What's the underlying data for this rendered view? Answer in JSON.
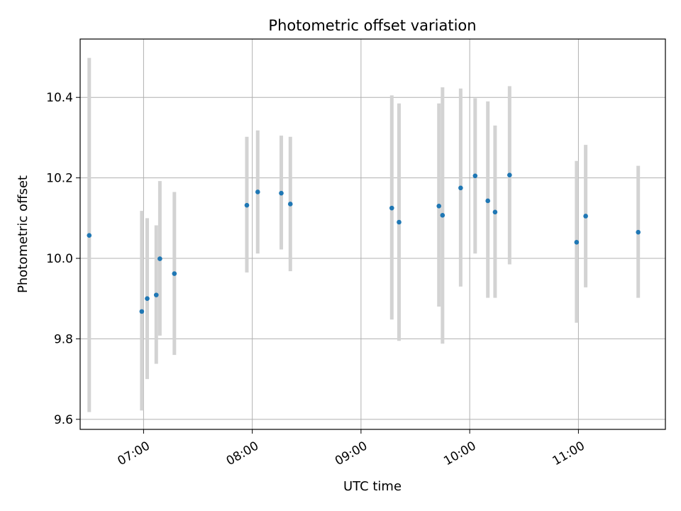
{
  "chart_data": {
    "type": "scatter",
    "title": "Photometric offset variation",
    "xlabel": "UTC time",
    "ylabel": "Photometric offset",
    "x_tick_labels": [
      "07:00",
      "08:00",
      "09:00",
      "10:00",
      "11:00"
    ],
    "y_tick_labels": [
      "9.6",
      "9.8",
      "10.0",
      "10.2",
      "10.4"
    ],
    "xlim": [
      "06:25",
      "11:48"
    ],
    "ylim": [
      9.575,
      10.545
    ],
    "grid": true,
    "marker_color": "#1f77b4",
    "errorbar_color": "#d3d3d3",
    "points": [
      {
        "time": "06:30",
        "value": 10.057,
        "lower": 9.618,
        "upper": 10.498
      },
      {
        "time": "06:59",
        "value": 9.868,
        "lower": 9.622,
        "upper": 10.118
      },
      {
        "time": "07:02",
        "value": 9.9,
        "lower": 9.7,
        "upper": 10.1
      },
      {
        "time": "07:07",
        "value": 9.909,
        "lower": 9.738,
        "upper": 10.082
      },
      {
        "time": "07:09",
        "value": 9.999,
        "lower": 9.808,
        "upper": 10.192
      },
      {
        "time": "07:17",
        "value": 9.962,
        "lower": 9.76,
        "upper": 10.165
      },
      {
        "time": "07:57",
        "value": 10.132,
        "lower": 9.965,
        "upper": 10.302
      },
      {
        "time": "08:03",
        "value": 10.165,
        "lower": 10.012,
        "upper": 10.318
      },
      {
        "time": "08:16",
        "value": 10.162,
        "lower": 10.022,
        "upper": 10.305
      },
      {
        "time": "08:21",
        "value": 10.135,
        "lower": 9.968,
        "upper": 10.302
      },
      {
        "time": "09:17",
        "value": 10.125,
        "lower": 9.848,
        "upper": 10.405
      },
      {
        "time": "09:21",
        "value": 10.09,
        "lower": 9.795,
        "upper": 10.385
      },
      {
        "time": "09:43",
        "value": 10.13,
        "lower": 9.88,
        "upper": 10.385
      },
      {
        "time": "09:45",
        "value": 10.107,
        "lower": 9.788,
        "upper": 10.425
      },
      {
        "time": "09:55",
        "value": 10.175,
        "lower": 9.93,
        "upper": 10.422
      },
      {
        "time": "10:03",
        "value": 10.205,
        "lower": 10.012,
        "upper": 10.398
      },
      {
        "time": "10:10",
        "value": 10.143,
        "lower": 9.902,
        "upper": 10.39
      },
      {
        "time": "10:14",
        "value": 10.115,
        "lower": 9.902,
        "upper": 10.33
      },
      {
        "time": "10:22",
        "value": 10.207,
        "lower": 9.985,
        "upper": 10.428
      },
      {
        "time": "10:59",
        "value": 10.04,
        "lower": 9.84,
        "upper": 10.242
      },
      {
        "time": "11:04",
        "value": 10.105,
        "lower": 9.928,
        "upper": 10.282
      },
      {
        "time": "11:33",
        "value": 10.065,
        "lower": 9.902,
        "upper": 10.23
      }
    ]
  }
}
